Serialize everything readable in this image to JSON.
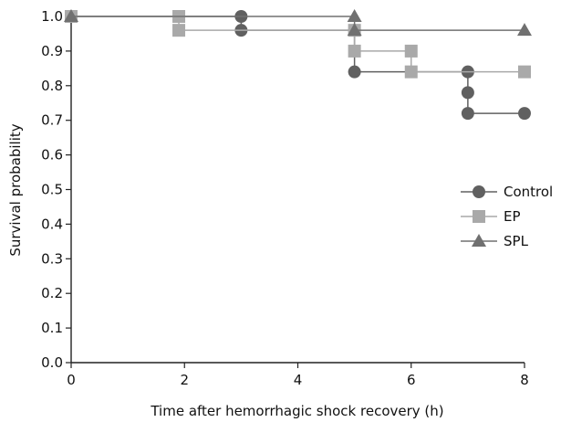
{
  "chart_data": {
    "type": "line",
    "xlabel": "Time after hemorrhagic shock recovery (h)",
    "ylabel": "Survival probability",
    "xlim": [
      0,
      8
    ],
    "ylim": [
      0,
      1.0
    ],
    "xticks": [
      "0",
      "2",
      "4",
      "6",
      "8"
    ],
    "yticks": [
      "0.0",
      "0.1",
      "0.2",
      "0.3",
      "0.4",
      "0.5",
      "0.6",
      "0.7",
      "0.8",
      "0.9",
      "1.0"
    ],
    "grid": false,
    "legend_position": "right",
    "series": [
      {
        "name": "Control",
        "marker": "circle",
        "color": "#606060",
        "x": [
          0,
          3,
          3,
          5,
          5,
          7,
          7,
          7,
          8
        ],
        "y": [
          1.0,
          1.0,
          0.96,
          0.96,
          0.84,
          0.84,
          0.78,
          0.72,
          0.72
        ]
      },
      {
        "name": "EP",
        "marker": "square",
        "color": "#a9a9a9",
        "x": [
          0,
          1.9,
          1.9,
          5,
          5,
          6,
          6,
          8
        ],
        "y": [
          1.0,
          1.0,
          0.96,
          0.96,
          0.9,
          0.9,
          0.84,
          0.84
        ]
      },
      {
        "name": "SPL",
        "marker": "triangle",
        "color": "#707070",
        "x": [
          0,
          5,
          5,
          8
        ],
        "y": [
          1.0,
          1.0,
          0.96,
          0.96
        ]
      }
    ]
  }
}
